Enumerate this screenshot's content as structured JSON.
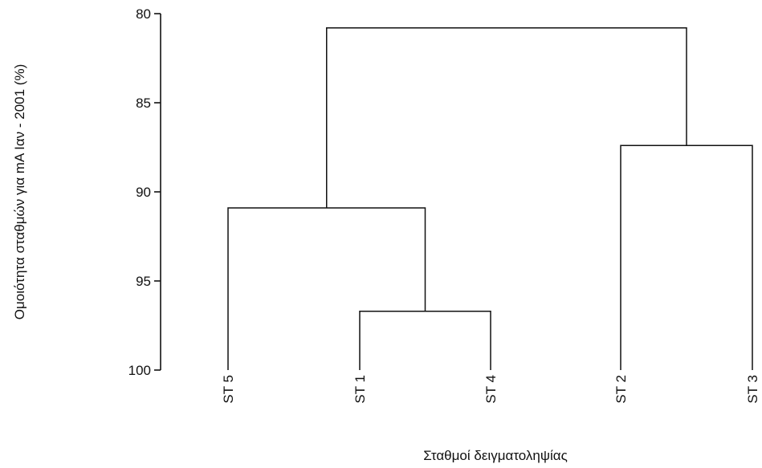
{
  "chart_data": {
    "type": "dendrogram",
    "title": "",
    "xlabel": "Σταθμοί δειγματοληψίας",
    "ylabel": "Ομοιότητα σταθμών για mA Ιαν - 2001 (%)",
    "ylim": [
      80,
      100
    ],
    "y_inverted": true,
    "yticks": [
      80,
      85,
      90,
      95,
      100
    ],
    "leaves": [
      "ST 5",
      "ST 1",
      "ST 4",
      "ST 2",
      "ST 3"
    ],
    "merges": [
      {
        "left": "ST 1",
        "right": "ST 4",
        "similarity": 96.7
      },
      {
        "left": "ST 5",
        "right": "ST 1 + ST 4",
        "similarity": 90.9
      },
      {
        "left": "ST 2",
        "right": "ST 3",
        "similarity": 87.4
      },
      {
        "left": "ST 5 + ST 1 + ST 4",
        "right": "ST 2 + ST 3",
        "similarity": 80.8
      }
    ]
  }
}
